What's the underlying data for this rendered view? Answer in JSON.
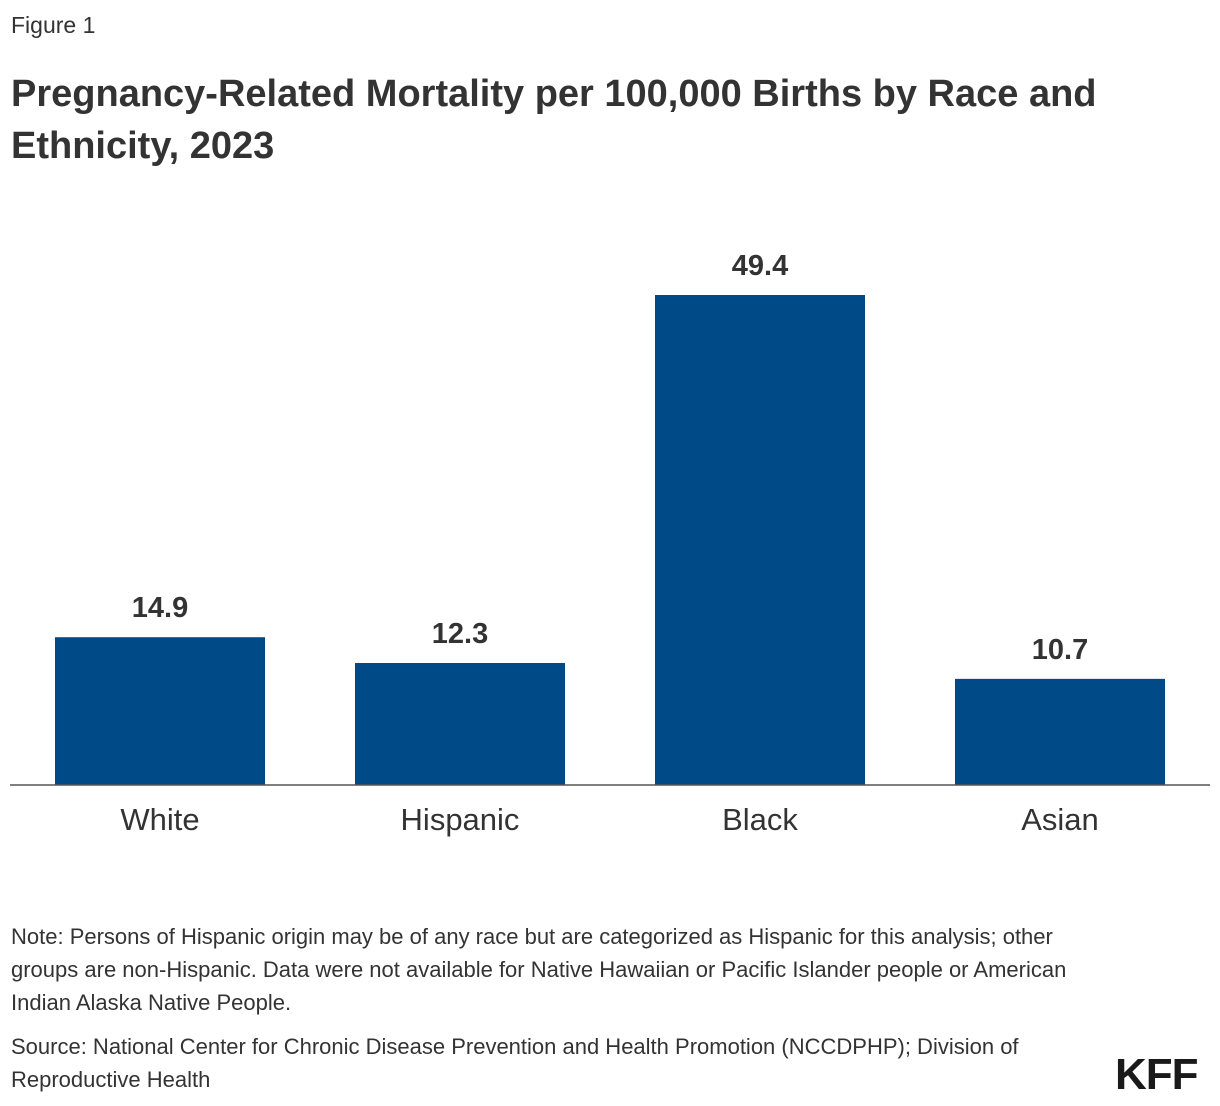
{
  "figure_label": "Figure 1",
  "note": "Note: Persons of Hispanic origin may be of any race but are categorized as Hispanic for this analysis; other groups are non-Hispanic.  Data were not available for Native Hawaiian or Pacific Islander people or American Indian Alaska Native People.",
  "source": "Source: National Center for Chronic Disease Prevention and Health Promotion (NCCDPHP); Division of Reproductive Health",
  "logo": "KFF",
  "chart_data": {
    "type": "bar",
    "title": "Pregnancy-Related Mortality per 100,000 Births by Race and Ethnicity, 2023",
    "categories": [
      "White",
      "Hispanic",
      "Black",
      "Asian"
    ],
    "values": [
      14.9,
      12.3,
      49.4,
      10.7
    ],
    "value_labels": [
      "14.9",
      "12.3",
      "49.4",
      "10.7"
    ],
    "xlabel": "",
    "ylabel": "",
    "ylim": [
      0,
      49.4
    ],
    "grid": false,
    "bar_color": "#004a87"
  }
}
